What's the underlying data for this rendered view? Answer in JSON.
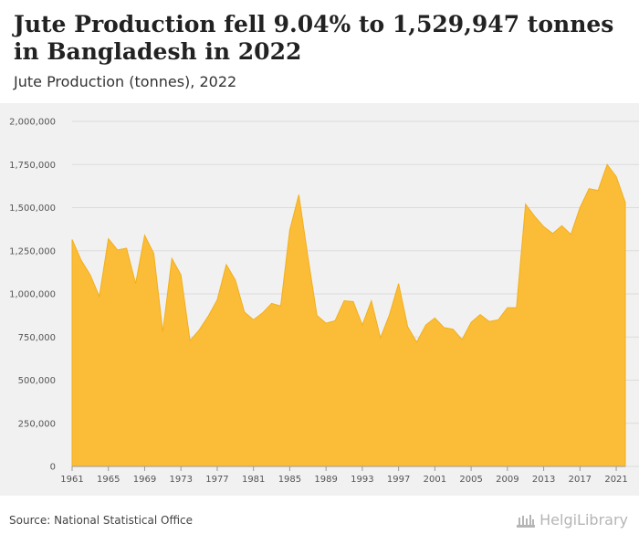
{
  "header": {
    "title": "Jute Production fell 9.04% to 1,529,947 tonnes in Bangladesh in 2022",
    "subtitle": "Jute Production (tonnes), 2022"
  },
  "footer": {
    "source": "Source: National Statistical Office",
    "brand": "HelgiLibrary"
  },
  "colors": {
    "fill": "#fbbd38",
    "stroke": "#f2ae1c",
    "grid": "#dcdcdc",
    "plot_bg": "#f1f1f1"
  },
  "chart_data": {
    "type": "area",
    "title": "Jute Production fell 9.04% to 1,529,947 tonnes in Bangladesh in 2022",
    "subtitle": "Jute Production (tonnes), 2022",
    "xlabel": "",
    "ylabel": "",
    "ylim": [
      0,
      2000000
    ],
    "yticks": [
      0,
      250000,
      500000,
      750000,
      1000000,
      1250000,
      1500000,
      1750000,
      2000000
    ],
    "ytick_labels": [
      "0",
      "250,000",
      "500,000",
      "750,000",
      "1,000,000",
      "1,250,000",
      "1,500,000",
      "1,750,000",
      "2,000,000"
    ],
    "xticks": [
      "1961",
      "1965",
      "1969",
      "1973",
      "1977",
      "1981",
      "1985",
      "1989",
      "1993",
      "1997",
      "2001",
      "2005",
      "2009",
      "2013",
      "2017",
      "2021"
    ],
    "grid": true,
    "legend": "none",
    "x": [
      1961,
      1962,
      1963,
      1964,
      1965,
      1966,
      1967,
      1968,
      1969,
      1970,
      1971,
      1972,
      1973,
      1974,
      1975,
      1976,
      1977,
      1978,
      1979,
      1980,
      1981,
      1982,
      1983,
      1984,
      1985,
      1986,
      1987,
      1988,
      1989,
      1990,
      1991,
      1992,
      1993,
      1994,
      1995,
      1996,
      1997,
      1998,
      1999,
      2000,
      2001,
      2002,
      2003,
      2004,
      2005,
      2006,
      2007,
      2008,
      2009,
      2010,
      2011,
      2012,
      2013,
      2014,
      2015,
      2016,
      2017,
      2018,
      2019,
      2020,
      2021,
      2022
    ],
    "values": [
      1315000,
      1195000,
      1110000,
      985000,
      1320000,
      1255000,
      1265000,
      1060000,
      1340000,
      1235000,
      780000,
      1205000,
      1110000,
      730000,
      790000,
      870000,
      965000,
      1170000,
      1080000,
      895000,
      850000,
      890000,
      945000,
      930000,
      1370000,
      1575000,
      1215000,
      875000,
      830000,
      845000,
      960000,
      955000,
      820000,
      960000,
      745000,
      880000,
      1060000,
      810000,
      720000,
      820000,
      860000,
      805000,
      795000,
      735000,
      835000,
      880000,
      840000,
      850000,
      920000,
      920000,
      1520000,
      1450000,
      1390000,
      1350000,
      1395000,
      1345000,
      1500000,
      1610000,
      1600000,
      1750000,
      1680000,
      1529947
    ]
  }
}
